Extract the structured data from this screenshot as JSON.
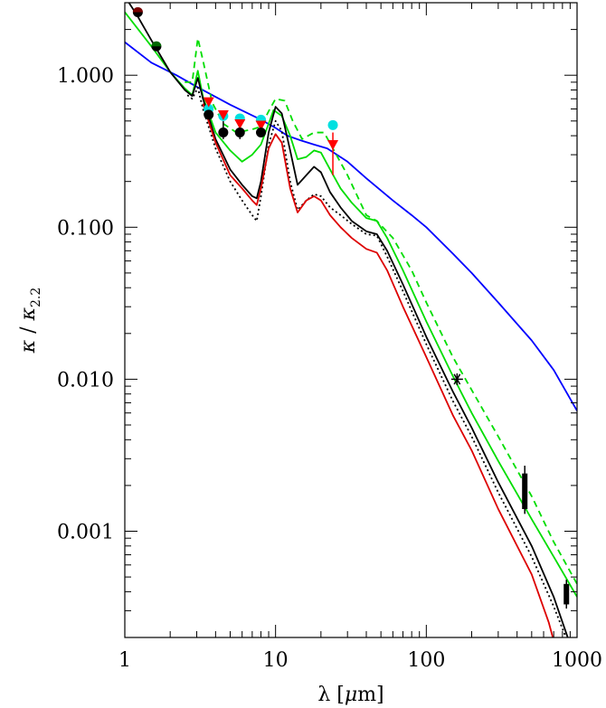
{
  "chart_data": {
    "type": "line",
    "x_scale": "log",
    "y_scale": "log",
    "xlim": [
      1,
      1000
    ],
    "ylim": [
      0.0002,
      3.0
    ],
    "xlabel": {
      "main": "λ [",
      "unit_mu": "μ",
      "unit_rest": "m]"
    },
    "ylabel": {
      "kappa1": "κ",
      "slash": " / ",
      "kappa2": "κ",
      "sub": "2.2"
    },
    "x_ticks": [
      {
        "value": 1,
        "label": "1"
      },
      {
        "value": 10,
        "label": "10"
      },
      {
        "value": 100,
        "label": "100"
      },
      {
        "value": 1000,
        "label": "1000"
      }
    ],
    "y_ticks": [
      {
        "value": 0.001,
        "label": "0.001"
      },
      {
        "value": 0.01,
        "label": "0.010"
      },
      {
        "value": 0.1,
        "label": "0.100"
      },
      {
        "value": 1.0,
        "label": "1.000"
      }
    ],
    "grid": false,
    "series": [
      {
        "id": "blue-curve",
        "color": "#0000ff",
        "dash": "",
        "points": [
          [
            1,
            1.65
          ],
          [
            1.5,
            1.21
          ],
          [
            2.2,
            1.0
          ],
          [
            3,
            0.84
          ],
          [
            5,
            0.64
          ],
          [
            8,
            0.51
          ],
          [
            10,
            0.45
          ],
          [
            12,
            0.4
          ],
          [
            15,
            0.37
          ],
          [
            18,
            0.35
          ],
          [
            22,
            0.33
          ],
          [
            30,
            0.27
          ],
          [
            40,
            0.21
          ],
          [
            60,
            0.15
          ],
          [
            80,
            0.12
          ],
          [
            100,
            0.1
          ],
          [
            150,
            0.067
          ],
          [
            200,
            0.05
          ],
          [
            300,
            0.032
          ],
          [
            500,
            0.018
          ],
          [
            700,
            0.0115
          ],
          [
            1000,
            0.0062
          ]
        ]
      },
      {
        "id": "green-solid-curve",
        "color": "#00dd00",
        "dash": "",
        "points": [
          [
            1,
            2.6
          ],
          [
            1.5,
            1.55
          ],
          [
            2,
            1.05
          ],
          [
            2.5,
            0.82
          ],
          [
            2.8,
            0.74
          ],
          [
            3.05,
            1.07
          ],
          [
            3.3,
            0.72
          ],
          [
            4,
            0.42
          ],
          [
            5,
            0.32
          ],
          [
            6,
            0.27
          ],
          [
            7,
            0.3
          ],
          [
            8,
            0.35
          ],
          [
            9,
            0.48
          ],
          [
            9.7,
            0.59
          ],
          [
            11,
            0.54
          ],
          [
            12.5,
            0.4
          ],
          [
            14,
            0.28
          ],
          [
            16,
            0.29
          ],
          [
            18,
            0.32
          ],
          [
            20,
            0.31
          ],
          [
            23,
            0.24
          ],
          [
            27,
            0.18
          ],
          [
            32,
            0.145
          ],
          [
            40,
            0.115
          ],
          [
            47,
            0.11
          ],
          [
            55,
            0.085
          ],
          [
            70,
            0.052
          ],
          [
            100,
            0.024
          ],
          [
            150,
            0.0105
          ],
          [
            200,
            0.006
          ],
          [
            300,
            0.0029
          ],
          [
            500,
            0.0012
          ],
          [
            700,
            0.00068
          ],
          [
            1000,
            0.00037
          ]
        ]
      },
      {
        "id": "green-dashed-curve",
        "color": "#00dd00",
        "dash": "7,5",
        "points": [
          [
            2.5,
            0.9
          ],
          [
            2.8,
            0.9
          ],
          [
            3.05,
            1.75
          ],
          [
            3.3,
            1.25
          ],
          [
            3.8,
            0.66
          ],
          [
            4.5,
            0.48
          ],
          [
            5.5,
            0.42
          ],
          [
            7,
            0.44
          ],
          [
            8,
            0.46
          ],
          [
            9,
            0.58
          ],
          [
            10,
            0.7
          ],
          [
            11.5,
            0.68
          ],
          [
            13,
            0.5
          ],
          [
            15,
            0.38
          ],
          [
            18,
            0.42
          ],
          [
            21,
            0.42
          ],
          [
            24,
            0.33
          ],
          [
            30,
            0.22
          ],
          [
            40,
            0.12
          ],
          [
            47,
            0.11
          ],
          [
            60,
            0.085
          ],
          [
            80,
            0.052
          ],
          [
            100,
            0.032
          ],
          [
            150,
            0.014
          ],
          [
            200,
            0.0085
          ],
          [
            300,
            0.0042
          ],
          [
            500,
            0.0017
          ],
          [
            700,
            0.00085
          ],
          [
            1000,
            0.00045
          ]
        ]
      },
      {
        "id": "black-solid-curve",
        "color": "#000000",
        "dash": "",
        "points": [
          [
            1,
            3.3
          ],
          [
            1.2,
            2.5
          ],
          [
            1.5,
            1.7
          ],
          [
            2,
            1.05
          ],
          [
            2.5,
            0.8
          ],
          [
            2.8,
            0.73
          ],
          [
            3.05,
            0.96
          ],
          [
            3.3,
            0.7
          ],
          [
            4,
            0.38
          ],
          [
            5,
            0.24
          ],
          [
            6,
            0.19
          ],
          [
            7,
            0.16
          ],
          [
            7.5,
            0.155
          ],
          [
            8,
            0.2
          ],
          [
            9,
            0.42
          ],
          [
            10,
            0.62
          ],
          [
            11,
            0.56
          ],
          [
            12.5,
            0.32
          ],
          [
            14,
            0.19
          ],
          [
            16,
            0.22
          ],
          [
            18,
            0.25
          ],
          [
            20,
            0.23
          ],
          [
            23,
            0.17
          ],
          [
            27,
            0.135
          ],
          [
            32,
            0.11
          ],
          [
            40,
            0.094
          ],
          [
            47,
            0.09
          ],
          [
            55,
            0.07
          ],
          [
            70,
            0.042
          ],
          [
            100,
            0.019
          ],
          [
            150,
            0.0083
          ],
          [
            200,
            0.0048
          ],
          [
            300,
            0.0021
          ],
          [
            500,
            0.0008
          ],
          [
            700,
            0.00037
          ],
          [
            900,
            0.00018
          ]
        ]
      },
      {
        "id": "black-dotted-curve",
        "color": "#000000",
        "dash": "2,3",
        "points": [
          [
            2.6,
            0.74
          ],
          [
            2.8,
            0.7
          ],
          [
            3.05,
            0.83
          ],
          [
            3.3,
            0.6
          ],
          [
            4,
            0.33
          ],
          [
            5,
            0.2
          ],
          [
            6,
            0.15
          ],
          [
            7,
            0.12
          ],
          [
            7.5,
            0.11
          ],
          [
            8,
            0.16
          ],
          [
            9,
            0.35
          ],
          [
            10,
            0.5
          ],
          [
            11,
            0.43
          ],
          [
            12.5,
            0.2
          ],
          [
            14,
            0.13
          ],
          [
            16,
            0.15
          ],
          [
            18,
            0.165
          ],
          [
            20,
            0.16
          ],
          [
            23,
            0.135
          ],
          [
            27,
            0.12
          ],
          [
            32,
            0.105
          ],
          [
            40,
            0.09
          ],
          [
            47,
            0.088
          ],
          [
            55,
            0.064
          ],
          [
            70,
            0.038
          ],
          [
            100,
            0.017
          ],
          [
            150,
            0.0072
          ],
          [
            200,
            0.0042
          ],
          [
            300,
            0.0018
          ],
          [
            500,
            0.00068
          ],
          [
            700,
            0.00032
          ],
          [
            900,
            0.00017
          ]
        ]
      },
      {
        "id": "red-curve",
        "color": "#dd0000",
        "dash": "",
        "points": [
          [
            3.3,
            0.65
          ],
          [
            4,
            0.36
          ],
          [
            5,
            0.22
          ],
          [
            6,
            0.18
          ],
          [
            7,
            0.15
          ],
          [
            7.5,
            0.14
          ],
          [
            8,
            0.18
          ],
          [
            9,
            0.33
          ],
          [
            10,
            0.41
          ],
          [
            11,
            0.36
          ],
          [
            12.5,
            0.18
          ],
          [
            14,
            0.125
          ],
          [
            16,
            0.15
          ],
          [
            18,
            0.16
          ],
          [
            20,
            0.15
          ],
          [
            23,
            0.12
          ],
          [
            27,
            0.1
          ],
          [
            32,
            0.085
          ],
          [
            40,
            0.072
          ],
          [
            47,
            0.068
          ],
          [
            55,
            0.052
          ],
          [
            70,
            0.03
          ],
          [
            100,
            0.014
          ],
          [
            150,
            0.0058
          ],
          [
            200,
            0.0034
          ],
          [
            300,
            0.0014
          ],
          [
            500,
            0.00052
          ],
          [
            650,
            0.00025
          ],
          [
            700,
            0.00019
          ]
        ]
      }
    ],
    "markers": [
      {
        "kind": "circle",
        "color": "#000000",
        "x": 1.22,
        "y": 2.6
      },
      {
        "kind": "half-red-circle",
        "x": 1.22,
        "y": 2.6
      },
      {
        "kind": "circle",
        "color": "#000000",
        "x": 1.62,
        "y": 1.55
      },
      {
        "kind": "half-green-circle",
        "x": 1.62,
        "y": 1.55
      },
      {
        "kind": "circle",
        "color": "#00e0e0",
        "x": 3.6,
        "y": 0.6
      },
      {
        "kind": "triangle",
        "color": "#ff0000",
        "x": 3.6,
        "y": 0.67
      },
      {
        "kind": "circle",
        "color": "#000000",
        "x": 3.6,
        "y": 0.55
      },
      {
        "kind": "circle",
        "color": "#00e0e0",
        "x": 4.5,
        "y": 0.54
      },
      {
        "kind": "triangle",
        "color": "#ff0000",
        "x": 4.5,
        "y": 0.55
      },
      {
        "kind": "circle",
        "color": "#000000",
        "x": 4.5,
        "y": 0.42
      },
      {
        "kind": "circle",
        "color": "#00e0e0",
        "x": 5.8,
        "y": 0.52
      },
      {
        "kind": "triangle",
        "color": "#ff0000",
        "x": 5.8,
        "y": 0.48
      },
      {
        "kind": "circle",
        "color": "#000000",
        "x": 5.8,
        "y": 0.42
      },
      {
        "kind": "circle",
        "color": "#00e0e0",
        "x": 8.0,
        "y": 0.51
      },
      {
        "kind": "triangle",
        "color": "#ff0000",
        "x": 8.0,
        "y": 0.47
      },
      {
        "kind": "circle",
        "color": "#000000",
        "x": 8.0,
        "y": 0.42
      },
      {
        "kind": "circle",
        "color": "#00e0e0",
        "x": 24.0,
        "y": 0.47
      },
      {
        "kind": "triangle",
        "color": "#ff0000",
        "x": 24.0,
        "y": 0.35
      },
      {
        "kind": "star",
        "color": "#000000",
        "x": 160,
        "y": 0.01
      }
    ],
    "error_bars": [
      {
        "color": "#000000",
        "x": 3.6,
        "y_low": 0.52,
        "y_high": 0.62,
        "width": 1.5
      },
      {
        "color": "#000000",
        "x": 4.5,
        "y_low": 0.38,
        "y_high": 0.5,
        "width": 1.5
      },
      {
        "color": "#000000",
        "x": 5.8,
        "y_low": 0.38,
        "y_high": 0.48,
        "width": 1.5
      },
      {
        "color": "#ff0000",
        "x": 24.0,
        "y_low": 0.22,
        "y_high": 0.42,
        "width": 1.5
      },
      {
        "color": "#000000",
        "x": 450,
        "y_low": 0.0013,
        "y_high": 0.0027,
        "width": 1.5
      },
      {
        "color": "#000000",
        "x": 450,
        "y_low": 0.0014,
        "y_high": 0.0024,
        "width": 6
      },
      {
        "color": "#000000",
        "x": 850,
        "y_low": 0.00031,
        "y_high": 0.00048,
        "width": 1.5
      },
      {
        "color": "#000000",
        "x": 850,
        "y_low": 0.00033,
        "y_high": 0.00045,
        "width": 6
      }
    ]
  }
}
